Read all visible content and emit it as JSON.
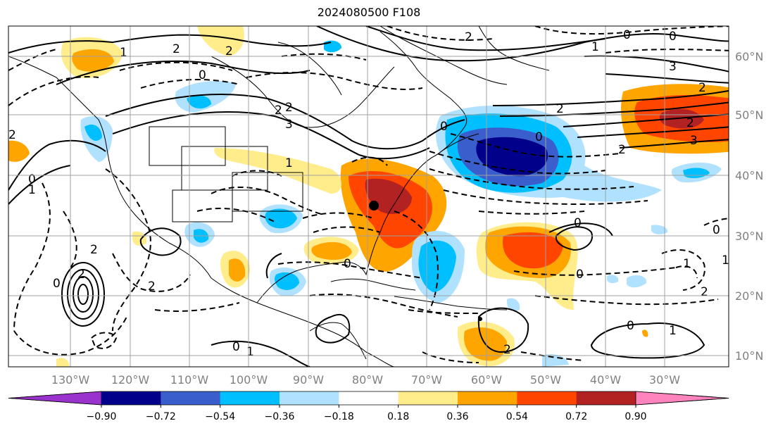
{
  "title": "2024080500 F108",
  "lat_labels": [
    "60°N",
    "50°N",
    "40°N",
    "30°N",
    "20°N",
    "10°N"
  ],
  "lon_labels": [
    "130°W",
    "120°W",
    "110°W",
    "100°W",
    "90°W",
    "80°W",
    "70°W",
    "60°W",
    "50°W",
    "40°W",
    "30°W"
  ],
  "colorbar": {
    "ticks": [
      "−0.90",
      "−0.72",
      "−0.54",
      "−0.36",
      "−0.18",
      "0.18",
      "0.36",
      "0.54",
      "0.72",
      "0.90"
    ],
    "colors": [
      "#9a32cd",
      "#00008b",
      "#3a5fcd",
      "#00bfff",
      "#b0e2ff",
      "#ffffff",
      "#ffec8b",
      "#ffa500",
      "#ff4500",
      "#b22222",
      "#ff83bd"
    ]
  },
  "shading_colors": {
    "strong_pos": "#b22222",
    "pos3": "#ff4500",
    "pos2": "#ffa500",
    "pos1": "#ffec8b",
    "neg1": "#b0e2ff",
    "neg2": "#00bfff",
    "neg3": "#3a5fcd",
    "neg4": "#00008b"
  },
  "contour_labels": [
    "2",
    "1",
    "2",
    "0",
    "2",
    "2",
    "3",
    "0",
    "1",
    "3",
    "2",
    "0",
    "2",
    "3",
    "2",
    "2",
    "0",
    "1",
    "0",
    "2",
    "2",
    "0",
    "0",
    "1",
    "2",
    "2",
    "2",
    "0",
    "1",
    "0",
    "0",
    "0",
    "0",
    "1",
    "0",
    "1",
    "1",
    "2",
    "2"
  ],
  "marker": "storm-center"
}
